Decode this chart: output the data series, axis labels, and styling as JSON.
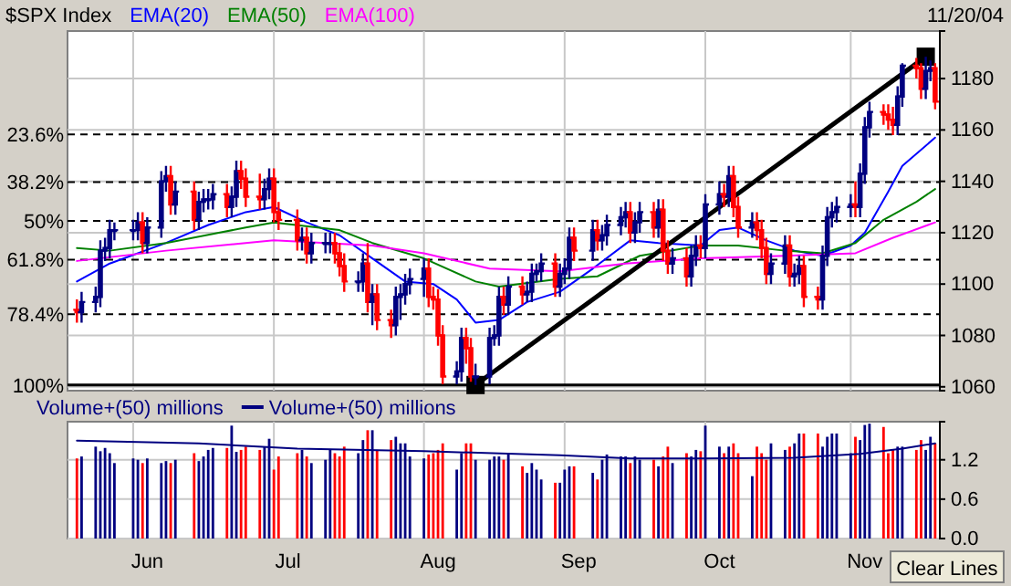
{
  "chart_data": [
    {
      "type": "candlestick",
      "title": "$SPX Index",
      "legend": "top left",
      "grid": true,
      "tick_labels": "y",
      "annotations": [
        "11/20/04",
        {
          "text": "23.6%",
          "x": "--05-18",
          "y": 1158.3
        },
        {
          "text": "38.2%",
          "x": "--05-18",
          "y": 1139.7
        },
        {
          "text": "50%",
          "x": "--05-18",
          "y": 1124.6
        },
        {
          "text": "61.8%",
          "x": "--05-18",
          "y": 1109.5
        },
        {
          "text": "78.4%",
          "x": "--05-18",
          "y": 1088.3
        },
        {
          "text": "100%",
          "x": "--05-18",
          "y": 1060.7
        }
      ],
      "xlim": [
        "--05-18",
        "--11-20"
      ],
      "ylim": [
        1058.5,
        1198.5
      ],
      "xticks": [
        {
          "value": "--06-01",
          "label": null
        },
        {
          "value": "--07-01",
          "label": null
        },
        {
          "value": "--08-02",
          "label": null
        },
        {
          "value": "--09-01",
          "label": null
        },
        {
          "value": "--10-01",
          "label": null
        },
        {
          "value": "--11-01",
          "label": null
        }
      ],
      "yticks": [
        1060,
        1080,
        1100,
        1120,
        1140,
        1160,
        1180
      ],
      "x": [
        "--05-20",
        "--05-21",
        "--05-24",
        "--05-25",
        "--05-26",
        "--05-27",
        "--05-28",
        "--06-01",
        "--06-02",
        "--06-03",
        "--06-04",
        "--06-07",
        "--06-08",
        "--06-09",
        "--06-10",
        "--06-14",
        "--06-15",
        "--06-16",
        "--06-17",
        "--06-18",
        "--06-21",
        "--06-22",
        "--06-23",
        "--06-24",
        "--06-25",
        "--06-28",
        "--06-29",
        "--06-30",
        "--07-01",
        "--07-02",
        "--07-06",
        "--07-07",
        "--07-08",
        "--07-09",
        "--07-12",
        "--07-13",
        "--07-14",
        "--07-15",
        "--07-16",
        "--07-19",
        "--07-20",
        "--07-21",
        "--07-22",
        "--07-23",
        "--07-26",
        "--07-27",
        "--07-28",
        "--07-29",
        "--07-30",
        "--08-02",
        "--08-03",
        "--08-04",
        "--08-05",
        "--08-06",
        "--08-09",
        "--08-10",
        "--08-11",
        "--08-12",
        "--08-13",
        "--08-16",
        "--08-17",
        "--08-18",
        "--08-19",
        "--08-20",
        "--08-23",
        "--08-24",
        "--08-25",
        "--08-26",
        "--08-27",
        "--08-30",
        "--08-31",
        "--09-01",
        "--09-02",
        "--09-03",
        "--09-07",
        "--09-08",
        "--09-09",
        "--09-10",
        "--09-13",
        "--09-14",
        "--09-15",
        "--09-16",
        "--09-17",
        "--09-20",
        "--09-21",
        "--09-22",
        "--09-23",
        "--09-24",
        "--09-27",
        "--09-28",
        "--09-29",
        "--09-30",
        "--10-01",
        "--10-04",
        "--10-05",
        "--10-06",
        "--10-07",
        "--10-08",
        "--10-11",
        "--10-12",
        "--10-13",
        "--10-14",
        "--10-15",
        "--10-18",
        "--10-19",
        "--10-20",
        "--10-21",
        "--10-22",
        "--10-25",
        "--10-26",
        "--10-27",
        "--10-28",
        "--10-29",
        "--11-01",
        "--11-02",
        "--11-03",
        "--11-04",
        "--11-05",
        "--11-08",
        "--11-09",
        "--11-10",
        "--11-11",
        "--11-12",
        "--11-15",
        "--11-16",
        "--11-17",
        "--11-18",
        "--11-19"
      ],
      "ohlc": [
        [
          1090,
          1094,
          1085,
          1089
        ],
        [
          1089,
          1097,
          1085,
          1093
        ],
        [
          1093,
          1099,
          1089,
          1095
        ],
        [
          1095,
          1117,
          1091,
          1113
        ],
        [
          1113,
          1118,
          1109,
          1114
        ],
        [
          1114,
          1125,
          1110,
          1121
        ],
        [
          1121,
          1124,
          1117,
          1121
        ],
        [
          1121,
          1125,
          1117,
          1121
        ],
        [
          1121,
          1128,
          1117,
          1124
        ],
        [
          1124,
          1128,
          1112,
          1116
        ],
        [
          1116,
          1126,
          1112,
          1122
        ],
        [
          1122,
          1144,
          1118,
          1140
        ],
        [
          1140,
          1146,
          1136,
          1142
        ],
        [
          1142,
          1146,
          1127,
          1131
        ],
        [
          1131,
          1140,
          1127,
          1136
        ],
        [
          1136,
          1140,
          1121,
          1125
        ],
        [
          1125,
          1136,
          1121,
          1132
        ],
        [
          1132,
          1137,
          1128,
          1133
        ],
        [
          1133,
          1137,
          1129,
          1133
        ],
        [
          1133,
          1139,
          1129,
          1135
        ],
        [
          1135,
          1139,
          1126,
          1130
        ],
        [
          1130,
          1138,
          1126,
          1134
        ],
        [
          1134,
          1148,
          1130,
          1144
        ],
        [
          1144,
          1148,
          1137,
          1141
        ],
        [
          1141,
          1145,
          1130,
          1134
        ],
        [
          1134,
          1143,
          1129,
          1133
        ],
        [
          1133,
          1141,
          1129,
          1137
        ],
        [
          1137,
          1145,
          1133,
          1141
        ],
        [
          1141,
          1145,
          1124,
          1128
        ],
        [
          1128,
          1132,
          1121,
          1125
        ],
        [
          1125,
          1129,
          1113,
          1117
        ],
        [
          1117,
          1122,
          1113,
          1118
        ],
        [
          1118,
          1122,
          1108,
          1112
        ],
        [
          1112,
          1120,
          1108,
          1116
        ],
        [
          1116,
          1120,
          1112,
          1116
        ],
        [
          1116,
          1120,
          1112,
          1116
        ],
        [
          1116,
          1120,
          1108,
          1112
        ],
        [
          1112,
          1116,
          1103,
          1107
        ],
        [
          1107,
          1112,
          1097,
          1101
        ],
        [
          1101,
          1105,
          1097,
          1101
        ],
        [
          1101,
          1112,
          1097,
          1108
        ],
        [
          1108,
          1116,
          1089,
          1093
        ],
        [
          1093,
          1100,
          1084,
          1096
        ],
        [
          1096,
          1100,
          1082,
          1086
        ],
        [
          1086,
          1090,
          1079,
          1084
        ],
        [
          1084,
          1099,
          1080,
          1095
        ],
        [
          1095,
          1100,
          1086,
          1096
        ],
        [
          1096,
          1104,
          1092,
          1100
        ],
        [
          1100,
          1106,
          1096,
          1102
        ],
        [
          1102,
          1110,
          1095,
          1106
        ],
        [
          1106,
          1110,
          1091,
          1095
        ],
        [
          1095,
          1099,
          1090,
          1094
        ],
        [
          1094,
          1098,
          1076,
          1080
        ],
        [
          1080,
          1084,
          1061,
          1064
        ],
        [
          1064,
          1070,
          1061,
          1066
        ],
        [
          1066,
          1083,
          1062,
          1079
        ],
        [
          1079,
          1083,
          1069,
          1075
        ],
        [
          1075,
          1079,
          1062,
          1064
        ],
        [
          1064,
          1069,
          1060.7,
          1064
        ],
        [
          1064,
          1083,
          1061,
          1079
        ],
        [
          1079,
          1084,
          1076,
          1080
        ],
        [
          1080,
          1099,
          1076,
          1095
        ],
        [
          1095,
          1099,
          1088,
          1092
        ],
        [
          1092,
          1103,
          1088,
          1099
        ],
        [
          1099,
          1103,
          1092,
          1096
        ],
        [
          1096,
          1101,
          1093,
          1097
        ],
        [
          1097,
          1108,
          1093,
          1104
        ],
        [
          1104,
          1108,
          1101,
          1105
        ],
        [
          1105,
          1112,
          1101,
          1108
        ],
        [
          1108,
          1112,
          1095,
          1099
        ],
        [
          1099,
          1108,
          1095,
          1104
        ],
        [
          1104,
          1110,
          1100,
          1106
        ],
        [
          1106,
          1122,
          1102,
          1118
        ],
        [
          1118,
          1122,
          1109,
          1113
        ],
        [
          1113,
          1125,
          1109,
          1121
        ],
        [
          1121,
          1125,
          1113,
          1117
        ],
        [
          1117,
          1123,
          1113,
          1119
        ],
        [
          1119,
          1127,
          1115,
          1123
        ],
        [
          1123,
          1130,
          1119,
          1126
        ],
        [
          1126,
          1132,
          1122,
          1128
        ],
        [
          1128,
          1132,
          1116,
          1120
        ],
        [
          1120,
          1128,
          1116,
          1124
        ],
        [
          1124,
          1132,
          1120,
          1128
        ],
        [
          1128,
          1132,
          1118,
          1122
        ],
        [
          1122,
          1133,
          1118,
          1129
        ],
        [
          1129,
          1133,
          1109,
          1113
        ],
        [
          1113,
          1117,
          1104,
          1108
        ],
        [
          1108,
          1114,
          1104,
          1110
        ],
        [
          1110,
          1114,
          1099,
          1103
        ],
        [
          1103,
          1115,
          1099,
          1111
        ],
        [
          1111,
          1119,
          1107,
          1115
        ],
        [
          1115,
          1119,
          1110,
          1114
        ],
        [
          1114,
          1135,
          1110,
          1131
        ],
        [
          1131,
          1140,
          1127,
          1135
        ],
        [
          1135,
          1139,
          1130,
          1134
        ],
        [
          1134,
          1146,
          1130,
          1142
        ],
        [
          1142,
          1146,
          1126,
          1130
        ],
        [
          1130,
          1134,
          1118,
          1122
        ],
        [
          1122,
          1128,
          1118,
          1124
        ],
        [
          1124,
          1128,
          1117,
          1121
        ],
        [
          1121,
          1125,
          1110,
          1114
        ],
        [
          1114,
          1118,
          1100,
          1104
        ],
        [
          1104,
          1112,
          1100,
          1108
        ],
        [
          1108,
          1119,
          1104,
          1115
        ],
        [
          1115,
          1119,
          1099,
          1103
        ],
        [
          1103,
          1108,
          1099,
          1104
        ],
        [
          1104,
          1111,
          1100,
          1107
        ],
        [
          1107,
          1111,
          1091,
          1095
        ],
        [
          1095,
          1099,
          1090,
          1094
        ],
        [
          1094,
          1115,
          1090,
          1111
        ],
        [
          1111,
          1130,
          1107,
          1126
        ],
        [
          1126,
          1132,
          1122,
          1128
        ],
        [
          1128,
          1134,
          1124,
          1130
        ],
        [
          1130,
          1135,
          1126,
          1131
        ],
        [
          1131,
          1140,
          1126,
          1130
        ],
        [
          1130,
          1147,
          1126,
          1143
        ],
        [
          1143,
          1165,
          1139,
          1161
        ],
        [
          1161,
          1171,
          1157,
          1167
        ],
        [
          1167,
          1170,
          1162,
          1166
        ],
        [
          1166,
          1170,
          1160,
          1164
        ],
        [
          1164,
          1169,
          1158,
          1162
        ],
        [
          1162,
          1177,
          1158,
          1173
        ],
        [
          1173,
          1186,
          1169,
          1185
        ],
        [
          1185,
          1188,
          1180,
          1184
        ],
        [
          1184,
          1186,
          1172,
          1176
        ],
        [
          1176,
          1188.5,
          1172,
          1183
        ],
        [
          1183,
          1187,
          1179,
          1184
        ],
        [
          1184,
          1186,
          1168,
          1171
        ]
      ],
      "colors": [
        "#ff0000",
        "#000080",
        "#000080",
        "#000080",
        "#000080",
        "#000080",
        "#000080",
        "#000080",
        "#000080",
        "#ff0000",
        "#000080",
        "#000080",
        "#000080",
        "#ff0000",
        "#000080",
        "#ff0000",
        "#000080",
        "#000080",
        "#000080",
        "#000080",
        "#ff0000",
        "#000080",
        "#000080",
        "#ff0000",
        "#ff0000",
        "#ff0000",
        "#000080",
        "#000080",
        "#ff0000",
        "#ff0000",
        "#ff0000",
        "#000080",
        "#ff0000",
        "#000080",
        "#000080",
        "#000080",
        "#ff0000",
        "#ff0000",
        "#ff0000",
        "#000080",
        "#000080",
        "#ff0000",
        "#000080",
        "#ff0000",
        "#ff0000",
        "#000080",
        "#000080",
        "#000080",
        "#000080",
        "#000080",
        "#ff0000",
        "#ff0000",
        "#ff0000",
        "#ff0000",
        "#000080",
        "#000080",
        "#ff0000",
        "#ff0000",
        "#000080",
        "#000080",
        "#000080",
        "#000080",
        "#ff0000",
        "#000080",
        "#ff0000",
        "#000080",
        "#000080",
        "#000080",
        "#000080",
        "#ff0000",
        "#000080",
        "#000080",
        "#000080",
        "#ff0000",
        "#000080",
        "#ff0000",
        "#000080",
        "#000080",
        "#000080",
        "#000080",
        "#ff0000",
        "#000080",
        "#000080",
        "#ff0000",
        "#000080",
        "#ff0000",
        "#ff0000",
        "#000080",
        "#ff0000",
        "#000080",
        "#000080",
        "#ff0000",
        "#000080",
        "#000080",
        "#ff0000",
        "#000080",
        "#ff0000",
        "#ff0000",
        "#000080",
        "#ff0000",
        "#ff0000",
        "#ff0000",
        "#000080",
        "#000080",
        "#ff0000",
        "#000080",
        "#000080",
        "#ff0000",
        "#ff0000",
        "#000080",
        "#000080",
        "#000080",
        "#000080",
        "#000080",
        "#ff0000",
        "#000080",
        "#000080",
        "#000080",
        "#ff0000",
        "#ff0000",
        "#ff0000",
        "#000080",
        "#000080",
        "#ff0000",
        "#ff0000",
        "#000080",
        "#000080",
        "#ff0000"
      ],
      "series": [
        {
          "name": "EMA(20)",
          "type": "line",
          "color": "#0000ff",
          "x": [
            "--05-20",
            "--05-27",
            "--06-08",
            "--06-17",
            "--06-25",
            "--07-01",
            "--07-08",
            "--07-15",
            "--07-22",
            "--07-29",
            "--08-04",
            "--08-09",
            "--08-13",
            "--08-18",
            "--08-24",
            "--08-31",
            "--09-07",
            "--09-15",
            "--09-21",
            "--09-30",
            "--10-04",
            "--10-08",
            "--10-14",
            "--10-20",
            "--10-26",
            "--11-01",
            "--11-04",
            "--11-09",
            "--11-12",
            "--11-19"
          ],
          "values": [
            1101,
            1108,
            1116,
            1123,
            1128,
            1130,
            1124,
            1119,
            1110,
            1101,
            1100,
            1094,
            1085,
            1086,
            1093,
            1097,
            1106,
            1117,
            1116,
            1115,
            1121,
            1122,
            1117,
            1113,
            1111,
            1115,
            1120,
            1136,
            1146,
            1157
          ]
        },
        {
          "name": "EMA(50)",
          "type": "line",
          "color": "#008000",
          "x": [
            "--05-20",
            "--05-27",
            "--06-08",
            "--06-25",
            "--07-01",
            "--07-15",
            "--07-22",
            "--08-02",
            "--08-13",
            "--08-18",
            "--08-31",
            "--09-08",
            "--09-17",
            "--09-30",
            "--10-08",
            "--10-18",
            "--10-26",
            "--11-02",
            "--11-08",
            "--11-15",
            "--11-19"
          ],
          "values": [
            1114,
            1113,
            1116,
            1122,
            1124,
            1121,
            1116,
            1110,
            1101,
            1099,
            1102,
            1103,
            1111,
            1115,
            1115,
            1113,
            1112,
            1116,
            1125,
            1132,
            1137
          ]
        },
        {
          "name": "EMA(100)",
          "type": "line",
          "color": "#ff00ff",
          "x": [
            "--05-20",
            "--06-08",
            "--06-25",
            "--07-01",
            "--07-22",
            "--08-02",
            "--08-16",
            "--08-31",
            "--09-14",
            "--09-30",
            "--10-18",
            "--11-02",
            "--11-10",
            "--11-19"
          ],
          "values": [
            1109,
            1113,
            1116,
            1117,
            1115,
            1112,
            1106,
            1105,
            1108,
            1110,
            1111,
            1112,
            1118,
            1124
          ]
        },
        {
          "type": "line",
          "color": "#000000",
          "marker": "square",
          "x": [
            "--08-13",
            "--11-17"
          ],
          "values": [
            1060.7,
            1188.5
          ]
        }
      ],
      "ref_lines": [
        {
          "axis": "y",
          "value": 1158.3,
          "line_style": "dashed",
          "color": "#000000"
        },
        {
          "axis": "y",
          "value": 1139.7,
          "line_style": "dashed",
          "color": "#000000"
        },
        {
          "axis": "y",
          "value": 1124.6,
          "line_style": "dashed",
          "color": "#000000"
        },
        {
          "axis": "y",
          "value": 1109.5,
          "line_style": "dashed",
          "color": "#000000"
        },
        {
          "axis": "y",
          "value": 1088.3,
          "line_style": "dashed",
          "color": "#000000"
        },
        {
          "axis": "y",
          "value": 1060.7,
          "line_style": "solid",
          "color": "#000000"
        }
      ]
    },
    {
      "type": "bar",
      "legend": "top left",
      "grid": true,
      "annotations": [
        "Clear Lines"
      ],
      "xlim": [
        "--05-18",
        "--11-20"
      ],
      "ylim": [
        0,
        1.78
      ],
      "xticks": [
        {
          "value": "--06-01",
          "label": null
        },
        {
          "value": "--06-04",
          "label": "Jun"
        },
        {
          "value": "--07-01",
          "label": null
        },
        {
          "value": "--07-04",
          "label": "Jul"
        },
        {
          "value": "--08-02",
          "label": null
        },
        {
          "value": "--08-05",
          "label": "Aug"
        },
        {
          "value": "--09-01",
          "label": null
        },
        {
          "value": "--09-04",
          "label": "Sep"
        },
        {
          "value": "--10-01",
          "label": null
        },
        {
          "value": "--10-04",
          "label": "Oct"
        },
        {
          "value": "--11-01",
          "label": null
        },
        {
          "value": "--11-04",
          "label": "Nov"
        }
      ],
      "yticks": [
        {
          "value": 0,
          "label": "0.0"
        },
        {
          "value": 0.6,
          "label": "0.6"
        },
        {
          "value": 1.2,
          "label": "1.2"
        }
      ],
      "x": [
        "--05-20",
        "--05-21",
        "--05-24",
        "--05-25",
        "--05-26",
        "--05-27",
        "--05-28",
        "--06-01",
        "--06-02",
        "--06-03",
        "--06-04",
        "--06-07",
        "--06-08",
        "--06-09",
        "--06-10",
        "--06-14",
        "--06-15",
        "--06-16",
        "--06-17",
        "--06-18",
        "--06-21",
        "--06-22",
        "--06-23",
        "--06-24",
        "--06-25",
        "--06-28",
        "--06-29",
        "--06-30",
        "--07-01",
        "--07-02",
        "--07-06",
        "--07-07",
        "--07-08",
        "--07-09",
        "--07-12",
        "--07-13",
        "--07-14",
        "--07-15",
        "--07-16",
        "--07-19",
        "--07-20",
        "--07-21",
        "--07-22",
        "--07-23",
        "--07-26",
        "--07-27",
        "--07-28",
        "--07-29",
        "--07-30",
        "--08-02",
        "--08-03",
        "--08-04",
        "--08-05",
        "--08-06",
        "--08-09",
        "--08-10",
        "--08-11",
        "--08-12",
        "--08-13",
        "--08-16",
        "--08-17",
        "--08-18",
        "--08-19",
        "--08-20",
        "--08-23",
        "--08-24",
        "--08-25",
        "--08-26",
        "--08-27",
        "--08-30",
        "--08-31",
        "--09-01",
        "--09-02",
        "--09-03",
        "--09-07",
        "--09-08",
        "--09-09",
        "--09-10",
        "--09-13",
        "--09-14",
        "--09-15",
        "--09-16",
        "--09-17",
        "--09-20",
        "--09-21",
        "--09-22",
        "--09-23",
        "--09-24",
        "--09-27",
        "--09-28",
        "--09-29",
        "--09-30",
        "--10-01",
        "--10-04",
        "--10-05",
        "--10-06",
        "--10-07",
        "--10-08",
        "--10-11",
        "--10-12",
        "--10-13",
        "--10-14",
        "--10-15",
        "--10-18",
        "--10-19",
        "--10-20",
        "--10-21",
        "--10-22",
        "--10-25",
        "--10-26",
        "--10-27",
        "--10-28",
        "--10-29",
        "--11-01",
        "--11-02",
        "--11-03",
        "--11-04",
        "--11-05",
        "--11-08",
        "--11-09",
        "--11-10",
        "--11-11",
        "--11-12",
        "--11-15",
        "--11-16",
        "--11-17",
        "--11-18",
        "--11-19"
      ],
      "series": [
        {
          "name": "Volume+(50) millions",
          "values": [
            1.22,
            1.25,
            1.4,
            1.33,
            1.38,
            1.3,
            1.15,
            1.22,
            1.2,
            1.15,
            1.22,
            1.15,
            1.18,
            1.15,
            1.2,
            1.3,
            1.18,
            1.25,
            1.35,
            1.38,
            1.38,
            1.72,
            1.32,
            1.35,
            1.4,
            1.35,
            1.4,
            1.52,
            1.05,
            1.25,
            1.3,
            1.35,
            1.25,
            1.15,
            1.2,
            1.35,
            1.3,
            1.25,
            1.4,
            1.3,
            1.5,
            1.65,
            1.65,
            1.35,
            1.5,
            1.55,
            1.45,
            1.45,
            1.25,
            1.22,
            1.28,
            1.3,
            1.35,
            1.45,
            1.05,
            1.3,
            1.45,
            1.45,
            1.2,
            1.2,
            1.25,
            1.25,
            1.2,
            1.3,
            1.1,
            1.0,
            1.15,
            1.05,
            0.9,
            0.85,
            0.85,
            1.05,
            1.1,
            1.1,
            1.0,
            0.9,
            1.2,
            1.28,
            1.25,
            1.25,
            1.15,
            1.25,
            1.2,
            1.2,
            1.1,
            1.25,
            1.4,
            1.15,
            1.3,
            1.25,
            1.35,
            1.33,
            1.72,
            1.4,
            1.3,
            1.4,
            1.45,
            1.3,
            0.95,
            1.4,
            1.3,
            1.2,
            1.45,
            1.35,
            1.4,
            1.45,
            1.6,
            1.6,
            1.6,
            1.4,
            1.55,
            1.6,
            1.6,
            1.3,
            1.55,
            1.5,
            1.73,
            1.75,
            1.7,
            1.3,
            1.35,
            1.4,
            1.4,
            1.35,
            1.5,
            1.35,
            1.55,
            1.45
          ],
          "colors": [
            "#ff0000",
            "#000080",
            "#000080",
            "#000080",
            "#000080",
            "#000080",
            "#000080",
            "#000080",
            "#000080",
            "#ff0000",
            "#000080",
            "#000080",
            "#000080",
            "#ff0000",
            "#000080",
            "#ff0000",
            "#000080",
            "#000080",
            "#000080",
            "#000080",
            "#ff0000",
            "#000080",
            "#000080",
            "#ff0000",
            "#ff0000",
            "#ff0000",
            "#000080",
            "#000080",
            "#ff0000",
            "#ff0000",
            "#ff0000",
            "#000080",
            "#ff0000",
            "#000080",
            "#000080",
            "#000080",
            "#ff0000",
            "#ff0000",
            "#ff0000",
            "#000080",
            "#000080",
            "#ff0000",
            "#000080",
            "#ff0000",
            "#ff0000",
            "#000080",
            "#000080",
            "#000080",
            "#000080",
            "#000080",
            "#ff0000",
            "#ff0000",
            "#ff0000",
            "#ff0000",
            "#000080",
            "#000080",
            "#ff0000",
            "#ff0000",
            "#000080",
            "#000080",
            "#000080",
            "#000080",
            "#ff0000",
            "#000080",
            "#ff0000",
            "#000080",
            "#000080",
            "#000080",
            "#000080",
            "#ff0000",
            "#000080",
            "#000080",
            "#000080",
            "#ff0000",
            "#000080",
            "#ff0000",
            "#000080",
            "#000080",
            "#000080",
            "#000080",
            "#ff0000",
            "#000080",
            "#000080",
            "#ff0000",
            "#000080",
            "#ff0000",
            "#ff0000",
            "#000080",
            "#ff0000",
            "#000080",
            "#000080",
            "#ff0000",
            "#000080",
            "#000080",
            "#ff0000",
            "#000080",
            "#ff0000",
            "#ff0000",
            "#000080",
            "#ff0000",
            "#ff0000",
            "#ff0000",
            "#000080",
            "#000080",
            "#ff0000",
            "#000080",
            "#000080",
            "#ff0000",
            "#ff0000",
            "#000080",
            "#000080",
            "#000080",
            "#000080",
            "#000080",
            "#ff0000",
            "#000080",
            "#000080",
            "#000080",
            "#ff0000",
            "#ff0000",
            "#ff0000",
            "#000080",
            "#000080",
            "#ff0000",
            "#ff0000",
            "#000080",
            "#000080",
            "#ff0000"
          ]
        },
        {
          "name": "Volume+(50) millions",
          "type": "line",
          "color": "#000080",
          "x": [
            "--05-20",
            "--06-15",
            "--07-06",
            "--08-02",
            "--08-31",
            "--09-15",
            "--10-01",
            "--10-20",
            "--11-03",
            "--11-12",
            "--11-19"
          ],
          "values": [
            1.49,
            1.45,
            1.37,
            1.33,
            1.27,
            1.22,
            1.22,
            1.23,
            1.29,
            1.37,
            1.45
          ]
        }
      ]
    }
  ]
}
